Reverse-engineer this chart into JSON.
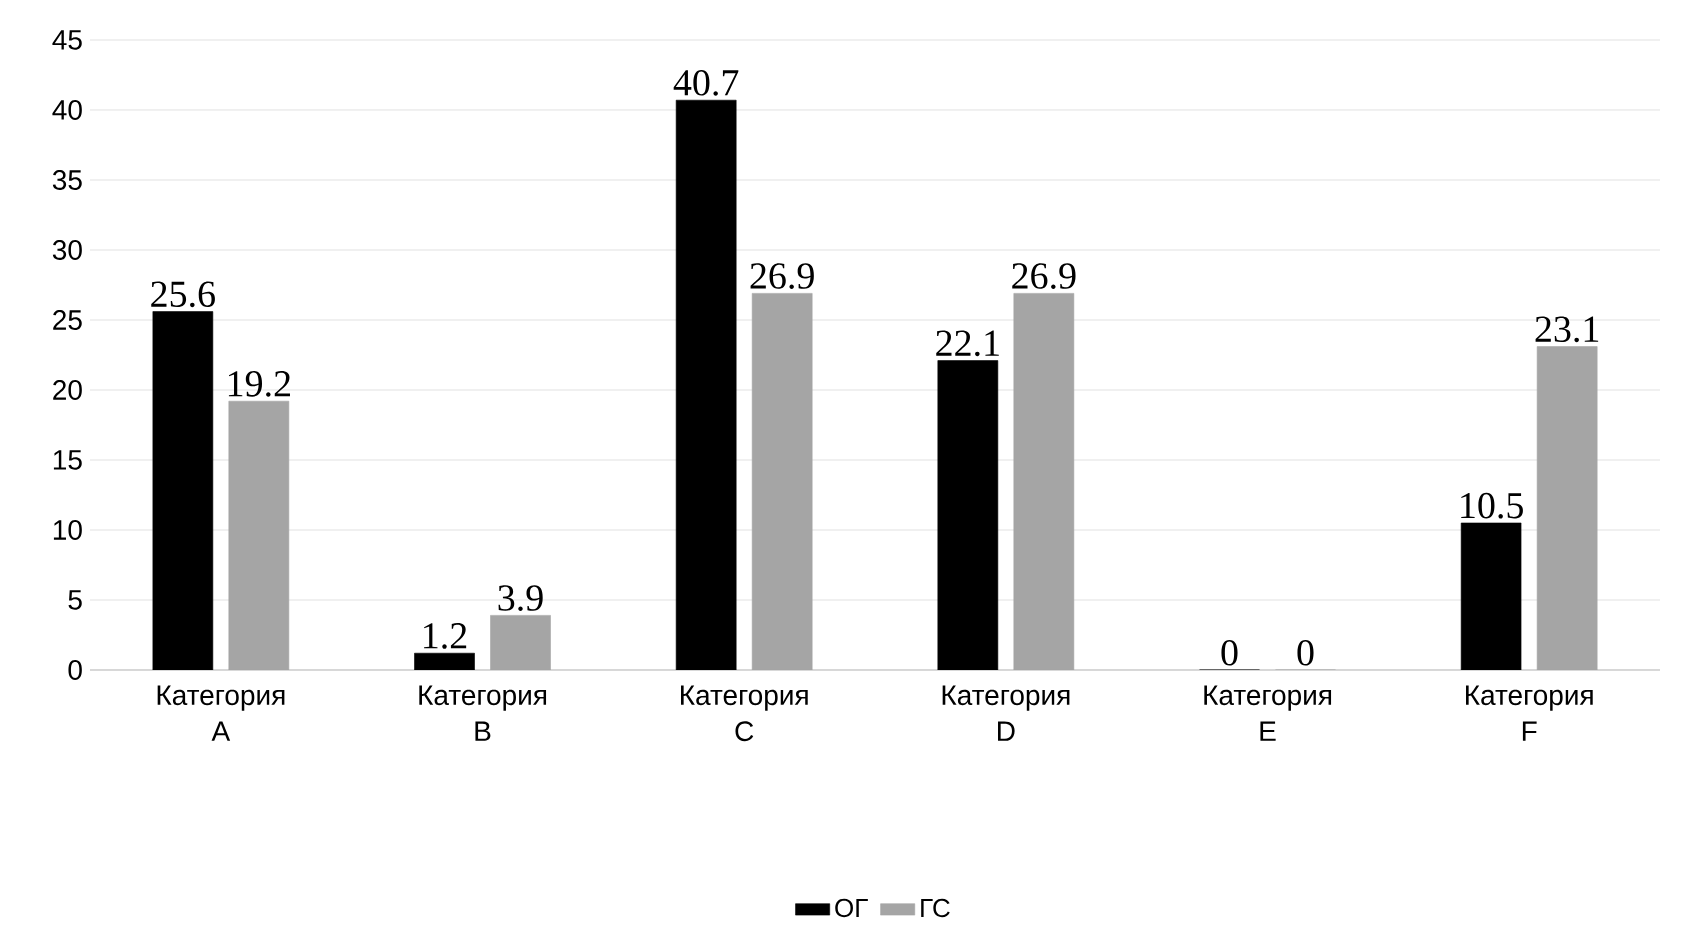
{
  "chart_data": {
    "type": "bar",
    "categories": [
      "Категория A",
      "Категория B",
      "Категория C",
      "Категория D",
      "Категория E",
      "Категория F"
    ],
    "series": [
      {
        "name": "ОГ",
        "color": "#000000",
        "values": [
          25.6,
          1.2,
          40.7,
          22.1,
          0,
          10.5
        ]
      },
      {
        "name": "ГС",
        "color": "#a5a5a5",
        "values": [
          19.2,
          3.9,
          26.9,
          26.9,
          0,
          23.1
        ]
      }
    ],
    "ylim": [
      0,
      45
    ],
    "yticks": [
      0,
      5,
      10,
      15,
      20,
      25,
      30,
      35,
      40,
      45
    ],
    "grid": "y",
    "legend": "bottom",
    "data_labels": true
  }
}
